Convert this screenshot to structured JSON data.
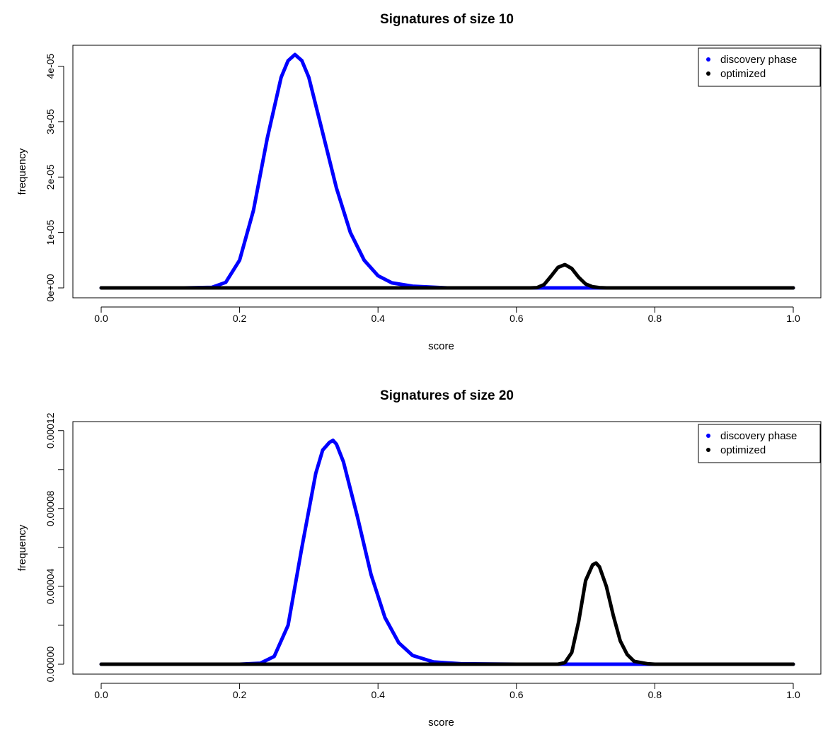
{
  "chart_data": [
    {
      "type": "line",
      "title": "Signatures of size 10",
      "xlabel": "score",
      "ylabel": "frequency",
      "xlim": [
        0.0,
        1.0
      ],
      "ylim": [
        0,
        4.25e-05
      ],
      "x_ticks": [
        0.0,
        0.2,
        0.4,
        0.6,
        0.8,
        1.0
      ],
      "x_tick_labels": [
        "0.0",
        "0.2",
        "0.4",
        "0.6",
        "0.8",
        "1.0"
      ],
      "y_ticks": [
        0,
        1e-05,
        2e-05,
        3e-05,
        4e-05
      ],
      "y_tick_labels": [
        "0e+00",
        "1e-05",
        "2e-05",
        "3e-05",
        "4e-05"
      ],
      "grid": false,
      "legend_position": "top-right",
      "series": [
        {
          "name": "discovery phase",
          "color": "#0000ff",
          "x": [
            0.0,
            0.12,
            0.16,
            0.18,
            0.2,
            0.22,
            0.24,
            0.26,
            0.27,
            0.28,
            0.29,
            0.3,
            0.32,
            0.34,
            0.36,
            0.38,
            0.4,
            0.42,
            0.45,
            0.5,
            0.6,
            0.7,
            0.8,
            0.9,
            1.0
          ],
          "y": [
            0,
            0,
            1e-07,
            1e-06,
            5e-06,
            1.4e-05,
            2.7e-05,
            3.8e-05,
            4.1e-05,
            4.21e-05,
            4.1e-05,
            3.8e-05,
            2.8e-05,
            1.8e-05,
            1e-05,
            5e-06,
            2.2e-06,
            9e-07,
            3e-07,
            0,
            0,
            0,
            0,
            0,
            0
          ]
        },
        {
          "name": "optimized",
          "color": "#000000",
          "x": [
            0.0,
            0.5,
            0.62,
            0.63,
            0.64,
            0.65,
            0.66,
            0.67,
            0.68,
            0.69,
            0.7,
            0.71,
            0.72,
            0.73,
            0.8,
            1.0
          ],
          "y": [
            0,
            0,
            0,
            5e-08,
            6e-07,
            2.1e-06,
            3.7e-06,
            4.2e-06,
            3.5e-06,
            1.9e-06,
            7e-07,
            2e-07,
            5e-08,
            0,
            0,
            0
          ]
        }
      ]
    },
    {
      "type": "line",
      "title": "Signatures of size 20",
      "xlabel": "score",
      "ylabel": "frequency",
      "xlim": [
        0.0,
        1.0
      ],
      "ylim": [
        0,
        0.000121
      ],
      "x_ticks": [
        0.0,
        0.2,
        0.4,
        0.6,
        0.8,
        1.0
      ],
      "x_tick_labels": [
        "0.0",
        "0.2",
        "0.4",
        "0.6",
        "0.8",
        "1.0"
      ],
      "y_ticks": [
        0,
        4e-05,
        8e-05,
        0.00012
      ],
      "y_tick_labels": [
        "0.00000",
        "0.00004",
        "0.00008",
        "0.00012"
      ],
      "y_minor_ticks": [
        2e-05,
        6e-05,
        0.0001
      ],
      "grid": false,
      "legend_position": "top-right",
      "series": [
        {
          "name": "discovery phase",
          "color": "#0000ff",
          "x": [
            0.0,
            0.2,
            0.23,
            0.25,
            0.27,
            0.29,
            0.31,
            0.32,
            0.33,
            0.335,
            0.34,
            0.35,
            0.37,
            0.39,
            0.41,
            0.43,
            0.45,
            0.48,
            0.52,
            0.6,
            0.7,
            0.8,
            0.9,
            1.0
          ],
          "y": [
            0,
            0,
            5e-07,
            4e-06,
            2e-05,
            6e-05,
            9.8e-05,
            0.00011,
            0.000114,
            0.000115,
            0.000113,
            0.000104,
            7.6e-05,
            4.6e-05,
            2.4e-05,
            1.1e-05,
            4.5e-06,
            1.2e-06,
            2e-07,
            0,
            0,
            0,
            0,
            0
          ]
        },
        {
          "name": "optimized",
          "color": "#000000",
          "x": [
            0.0,
            0.6,
            0.66,
            0.67,
            0.68,
            0.69,
            0.7,
            0.71,
            0.715,
            0.72,
            0.73,
            0.74,
            0.75,
            0.76,
            0.77,
            0.79,
            0.8,
            1.0
          ],
          "y": [
            0,
            0,
            0,
            8e-07,
            6e-06,
            2.2e-05,
            4.3e-05,
            5.1e-05,
            5.2e-05,
            5e-05,
            4e-05,
            2.5e-05,
            1.2e-05,
            5e-06,
            1.5e-06,
            2e-07,
            0,
            0
          ]
        }
      ]
    }
  ]
}
